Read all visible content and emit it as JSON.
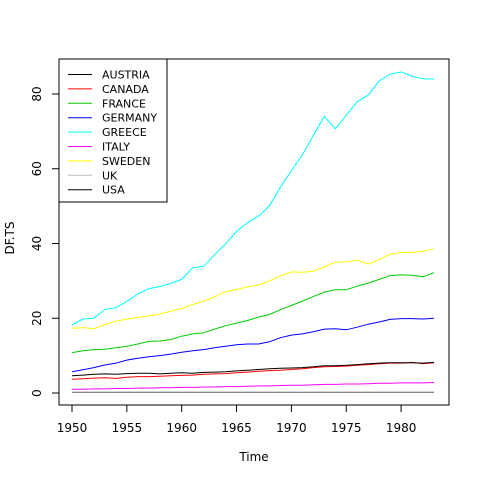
{
  "chart_data": {
    "type": "line",
    "title": "",
    "xlabel": "Time",
    "ylabel": "DF.TS",
    "xlim": [
      1950,
      1983
    ],
    "ylim": [
      0,
      90
    ],
    "x_ticks": [
      "1950",
      "1955",
      "1960",
      "1965",
      "1970",
      "1975",
      "1980"
    ],
    "y_ticks": [
      "0",
      "20",
      "40",
      "60",
      "80"
    ],
    "grid": false,
    "legend_position": "top-left",
    "x": [
      1950,
      1951,
      1952,
      1953,
      1954,
      1955,
      1956,
      1957,
      1958,
      1959,
      1960,
      1961,
      1962,
      1963,
      1964,
      1965,
      1966,
      1967,
      1968,
      1969,
      1970,
      1971,
      1972,
      1973,
      1974,
      1975,
      1976,
      1977,
      1978,
      1979,
      1980,
      1981,
      1982,
      1983
    ],
    "series": [
      {
        "name": "AUSTRIA",
        "color": "#000000",
        "values": [
          0.2,
          0.2,
          0.2,
          0.2,
          0.2,
          0.2,
          0.2,
          0.2,
          0.2,
          0.2,
          0.2,
          0.2,
          0.2,
          0.2,
          0.2,
          0.2,
          0.2,
          0.2,
          0.2,
          0.2,
          0.2,
          0.2,
          0.2,
          0.2,
          0.2,
          0.2,
          0.2,
          0.2,
          0.2,
          0.2,
          0.2,
          0.2,
          0.2,
          0.2
        ]
      },
      {
        "name": "CANADA",
        "color": "#ff0000",
        "values": [
          3.7,
          3.8,
          4.0,
          4.1,
          3.9,
          4.2,
          4.4,
          4.4,
          4.5,
          4.6,
          4.7,
          4.8,
          5.0,
          5.1,
          5.2,
          5.4,
          5.6,
          5.8,
          6.0,
          6.1,
          6.3,
          6.5,
          6.8,
          7.0,
          7.1,
          7.2,
          7.4,
          7.6,
          7.8,
          8.0,
          8.0,
          8.2,
          7.8,
          8.1
        ]
      },
      {
        "name": "FRANCE",
        "color": "#00cd00",
        "values": [
          10.8,
          11.3,
          11.6,
          11.7,
          12.1,
          12.5,
          13.1,
          13.8,
          13.9,
          14.3,
          15.2,
          15.8,
          16.1,
          17.1,
          18.0,
          18.7,
          19.4,
          20.3,
          21.0,
          22.3,
          23.4,
          24.6,
          25.8,
          27.0,
          27.6,
          27.6,
          28.6,
          29.4,
          30.4,
          31.4,
          31.6,
          31.5,
          31.1,
          32.2
        ]
      },
      {
        "name": "GERMANY",
        "color": "#0000ff",
        "values": [
          5.7,
          6.2,
          6.8,
          7.5,
          8.0,
          8.8,
          9.3,
          9.7,
          10.0,
          10.4,
          10.9,
          11.3,
          11.6,
          12.1,
          12.5,
          12.9,
          13.1,
          13.1,
          13.7,
          14.8,
          15.5,
          15.8,
          16.4,
          17.1,
          17.2,
          16.9,
          17.6,
          18.4,
          19.0,
          19.7,
          19.9,
          19.9,
          19.8,
          20.0
        ]
      },
      {
        "name": "GREECE",
        "color": "#00ffff",
        "values": [
          18.2,
          19.8,
          20.0,
          22.4,
          22.8,
          24.5,
          26.5,
          27.9,
          28.5,
          29.3,
          30.4,
          33.5,
          33.9,
          37.0,
          39.9,
          43.2,
          45.6,
          47.3,
          50.1,
          55.1,
          59.5,
          63.7,
          68.9,
          74.0,
          70.7,
          74.3,
          77.9,
          79.7,
          83.5,
          85.3,
          85.9,
          84.7,
          84.1,
          84.0
        ]
      },
      {
        "name": "ITALY",
        "color": "#ff00ff",
        "values": [
          1.0,
          1.0,
          1.1,
          1.1,
          1.2,
          1.2,
          1.3,
          1.3,
          1.4,
          1.4,
          1.5,
          1.5,
          1.6,
          1.6,
          1.7,
          1.7,
          1.8,
          1.9,
          1.9,
          2.0,
          2.1,
          2.1,
          2.2,
          2.3,
          2.3,
          2.4,
          2.4,
          2.5,
          2.6,
          2.6,
          2.7,
          2.7,
          2.7,
          2.8
        ]
      },
      {
        "name": "SWEDEN",
        "color": "#ffff00",
        "values": [
          17.3,
          17.5,
          17.2,
          18.3,
          19.2,
          19.8,
          20.2,
          20.6,
          21.1,
          21.9,
          22.6,
          23.7,
          24.5,
          25.7,
          27.1,
          27.7,
          28.4,
          28.9,
          30.0,
          31.3,
          32.4,
          32.3,
          32.6,
          33.7,
          35.0,
          35.1,
          35.5,
          34.5,
          35.7,
          37.1,
          37.6,
          37.6,
          37.9,
          38.6
        ]
      },
      {
        "name": "UK",
        "color": "#bebebe",
        "values": [
          0.3,
          0.3,
          0.3,
          0.3,
          0.3,
          0.3,
          0.3,
          0.3,
          0.3,
          0.3,
          0.3,
          0.3,
          0.3,
          0.3,
          0.3,
          0.3,
          0.3,
          0.3,
          0.3,
          0.3,
          0.3,
          0.3,
          0.3,
          0.3,
          0.3,
          0.3,
          0.3,
          0.3,
          0.3,
          0.3,
          0.3,
          0.3,
          0.3,
          0.3
        ]
      },
      {
        "name": "USA",
        "color": "#000000",
        "values": [
          4.6,
          4.8,
          5.0,
          5.1,
          5.0,
          5.2,
          5.3,
          5.3,
          5.1,
          5.3,
          5.4,
          5.3,
          5.5,
          5.6,
          5.7,
          5.9,
          6.1,
          6.3,
          6.5,
          6.6,
          6.7,
          6.8,
          7.0,
          7.3,
          7.3,
          7.4,
          7.6,
          7.8,
          8.0,
          8.1,
          8.1,
          8.1,
          8.0,
          8.2
        ]
      }
    ]
  }
}
